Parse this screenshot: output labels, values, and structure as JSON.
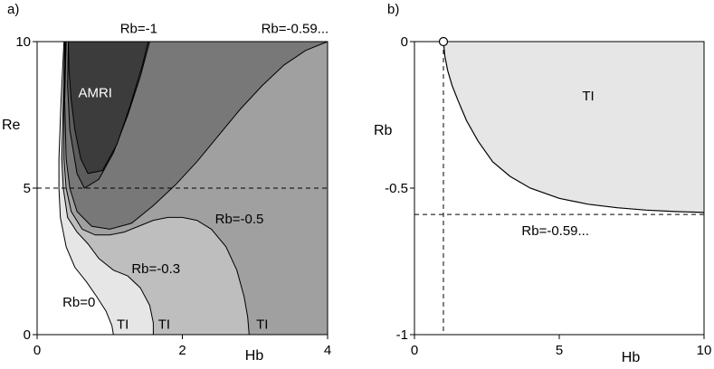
{
  "chart_data": [
    {
      "panel_label": "a)",
      "type": "area",
      "xlabel": "Hb",
      "ylabel": "Re",
      "xlim": [
        0,
        4
      ],
      "ylim": [
        0,
        10
      ],
      "x_ticks": [
        {
          "value": 0,
          "label": "0"
        },
        {
          "value": 2,
          "label": "2"
        },
        {
          "value": 4,
          "label": "4"
        }
      ],
      "y_ticks": [
        {
          "value": 0,
          "label": "0"
        },
        {
          "value": 5,
          "label": "5"
        },
        {
          "value": 10,
          "label": "10"
        }
      ],
      "colors": {
        "background": "#ffffff",
        "rb0": "#e6e6e6",
        "rb_0_3": "#bebebe",
        "rb_0_5": "#a0a0a0",
        "rb_0_59": "#787878",
        "rb_1": "#5c5c5c",
        "amri": "#3c3c3c",
        "line": "#000000"
      },
      "regions": [
        {
          "key": "rb0",
          "points": [
            [
              0.37,
              10
            ],
            [
              0.33,
              8
            ],
            [
              0.3,
              6
            ],
            [
              0.3,
              5
            ],
            [
              0.32,
              4
            ],
            [
              0.4,
              3
            ],
            [
              0.52,
              2.3
            ],
            [
              0.68,
              1.8
            ],
            [
              0.82,
              1.3
            ],
            [
              0.95,
              0.8
            ],
            [
              1.03,
              0.3
            ],
            [
              1.05,
              0
            ],
            [
              4,
              0
            ],
            [
              4,
              10
            ]
          ]
        },
        {
          "key": "rb_0_3",
          "points": [
            [
              0.38,
              10
            ],
            [
              0.36,
              8
            ],
            [
              0.34,
              6
            ],
            [
              0.36,
              5
            ],
            [
              0.42,
              4
            ],
            [
              0.55,
              3.5
            ],
            [
              0.7,
              3.1
            ],
            [
              0.85,
              2.6
            ],
            [
              1.05,
              2.2
            ],
            [
              1.25,
              2
            ],
            [
              1.42,
              1.6
            ],
            [
              1.55,
              1
            ],
            [
              1.6,
              0.4
            ],
            [
              1.6,
              0
            ],
            [
              4,
              0
            ],
            [
              4,
              10
            ]
          ]
        },
        {
          "key": "rb_0_5",
          "points": [
            [
              0.39,
              10
            ],
            [
              0.37,
              8
            ],
            [
              0.37,
              6
            ],
            [
              0.4,
              5
            ],
            [
              0.47,
              4.2
            ],
            [
              0.62,
              3.6
            ],
            [
              0.8,
              3.4
            ],
            [
              1.0,
              3.4
            ],
            [
              1.2,
              3.5
            ],
            [
              1.4,
              3.7
            ],
            [
              1.6,
              3.9
            ],
            [
              1.8,
              4.0
            ],
            [
              2.0,
              4.0
            ],
            [
              2.2,
              3.9
            ],
            [
              2.4,
              3.6
            ],
            [
              2.6,
              3.0
            ],
            [
              2.75,
              2.2
            ],
            [
              2.85,
              1.3
            ],
            [
              2.9,
              0.6
            ],
            [
              2.92,
              0
            ],
            [
              4,
              0
            ],
            [
              4,
              10
            ]
          ]
        },
        {
          "key": "rb_0_59",
          "points": [
            [
              0.4,
              10
            ],
            [
              0.38,
              8
            ],
            [
              0.4,
              6
            ],
            [
              0.45,
              5
            ],
            [
              0.55,
              4.2
            ],
            [
              0.75,
              3.7
            ],
            [
              1.0,
              3.6
            ],
            [
              1.3,
              3.8
            ],
            [
              1.6,
              4.4
            ],
            [
              1.9,
              5.1
            ],
            [
              2.2,
              5.9
            ],
            [
              2.5,
              6.8
            ],
            [
              2.8,
              7.7
            ],
            [
              3.1,
              8.5
            ],
            [
              3.4,
              9.2
            ],
            [
              3.7,
              9.7
            ],
            [
              4.0,
              10
            ]
          ]
        },
        {
          "key": "rb_1",
          "points": [
            [
              0.43,
              10
            ],
            [
              0.42,
              8.5
            ],
            [
              0.45,
              7
            ],
            [
              0.55,
              5.5
            ],
            [
              0.65,
              5.0
            ],
            [
              0.85,
              5.3
            ],
            [
              1.05,
              6.2
            ],
            [
              1.25,
              7.5
            ],
            [
              1.42,
              8.8
            ],
            [
              1.55,
              10
            ]
          ]
        },
        {
          "key": "amri",
          "points": [
            [
              0.43,
              10
            ],
            [
              0.44,
              9
            ],
            [
              0.47,
              8
            ],
            [
              0.52,
              7
            ],
            [
              0.6,
              6
            ],
            [
              0.7,
              5.5
            ],
            [
              0.9,
              5.6
            ],
            [
              1.1,
              6.5
            ],
            [
              1.28,
              7.8
            ],
            [
              1.45,
              9.2
            ],
            [
              1.53,
              10
            ]
          ]
        }
      ],
      "dashed_line": {
        "y": 5
      },
      "labels": [
        {
          "text": "Rb=-1",
          "x": 1.4,
          "y": 10.3,
          "anchor": "middle"
        },
        {
          "text": "Rb=-0.59...",
          "x": 3.55,
          "y": 10.3,
          "anchor": "middle"
        },
        {
          "text": "AMRI",
          "x": 0.8,
          "y": 8.1,
          "anchor": "middle",
          "fill": "#ffffff"
        },
        {
          "text": "Rb=-0.5",
          "x": 2.45,
          "y": 3.8,
          "anchor": "start"
        },
        {
          "text": "Rb=-0.3",
          "x": 1.3,
          "y": 2.1,
          "anchor": "start"
        },
        {
          "text": "Rb=0",
          "x": 0.35,
          "y": 0.95,
          "anchor": "start"
        },
        {
          "text": "TI",
          "x": 1.18,
          "y": 0.2,
          "anchor": "middle"
        },
        {
          "text": "TI",
          "x": 1.75,
          "y": 0.2,
          "anchor": "middle"
        },
        {
          "text": "TI",
          "x": 3.1,
          "y": 0.2,
          "anchor": "middle"
        }
      ]
    },
    {
      "panel_label": "b)",
      "type": "area",
      "xlabel": "Hb",
      "ylabel": "Rb",
      "xlim": [
        0,
        10
      ],
      "ylim": [
        -1,
        0
      ],
      "x_ticks": [
        {
          "value": 0,
          "label": "0"
        },
        {
          "value": 5,
          "label": "5"
        },
        {
          "value": 10,
          "label": "10"
        }
      ],
      "y_ticks": [
        {
          "value": -1,
          "label": "-1"
        },
        {
          "value": -0.5,
          "label": "-0.5"
        },
        {
          "value": 0,
          "label": "0"
        }
      ],
      "colors": {
        "background": "#ffffff",
        "region": "#e6e6e6",
        "line": "#000000"
      },
      "region_curve": [
        [
          1.0,
          0
        ],
        [
          1.05,
          -0.05
        ],
        [
          1.15,
          -0.1
        ],
        [
          1.3,
          -0.15
        ],
        [
          1.5,
          -0.2
        ],
        [
          1.8,
          -0.27
        ],
        [
          2.2,
          -0.34
        ],
        [
          2.7,
          -0.41
        ],
        [
          3.3,
          -0.46
        ],
        [
          4,
          -0.5
        ],
        [
          5,
          -0.535
        ],
        [
          6,
          -0.555
        ],
        [
          7,
          -0.567
        ],
        [
          8,
          -0.575
        ],
        [
          9,
          -0.58
        ],
        [
          10,
          -0.583
        ]
      ],
      "dashed_horizontal": {
        "y": -0.59
      },
      "dashed_vertical": {
        "x": 1.0
      },
      "marker": {
        "x": 1.0,
        "y": 0
      },
      "labels": [
        {
          "text": "TI",
          "x": 6.0,
          "y": -0.2,
          "anchor": "middle"
        },
        {
          "text": "Rb=-0.59...",
          "x": 3.7,
          "y": -0.66,
          "anchor": "start"
        }
      ]
    }
  ]
}
